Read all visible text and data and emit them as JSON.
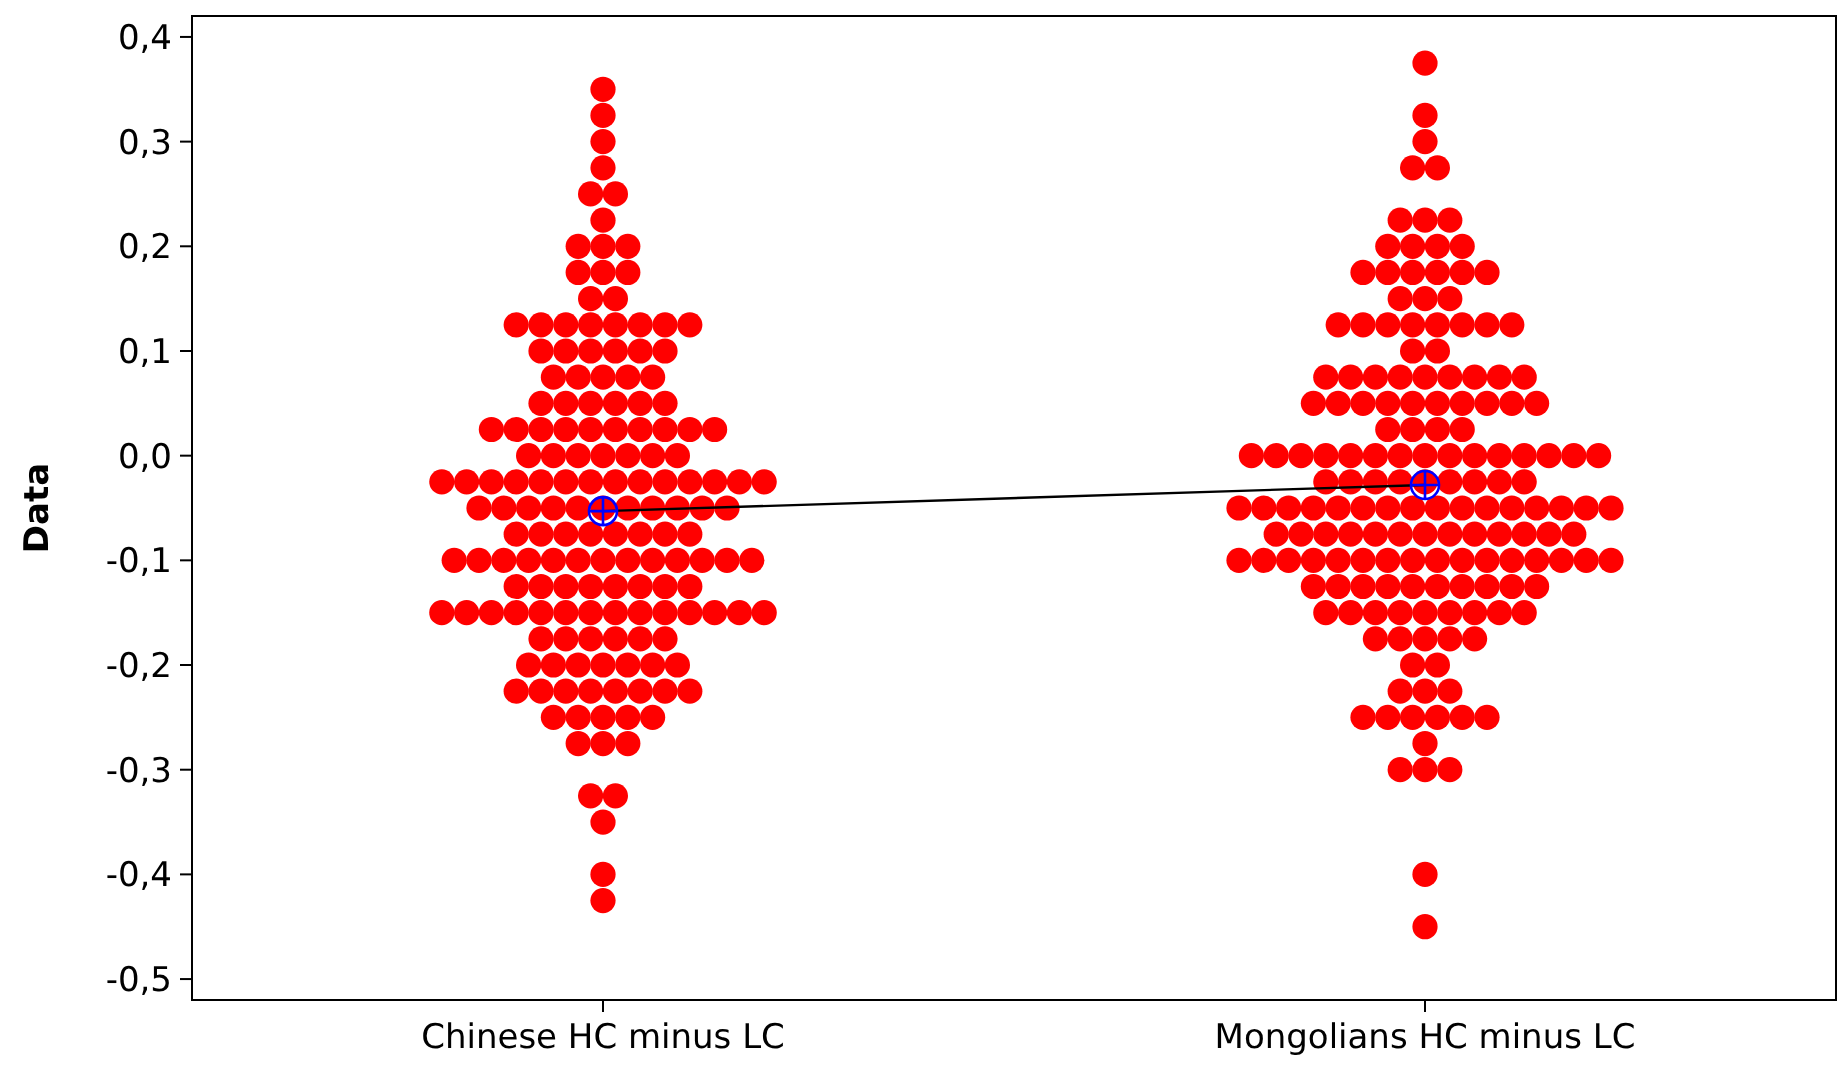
{
  "chart_data": {
    "type": "scatter",
    "ylabel": "Data",
    "categories": [
      "Chinese HC minus LC",
      "Mongolians HC minus LC"
    ],
    "ylim": [
      -0.52,
      0.42
    ],
    "yticks": [
      {
        "value": -0.5,
        "label": "-0,5"
      },
      {
        "value": -0.4,
        "label": "-0,4"
      },
      {
        "value": -0.3,
        "label": "-0,3"
      },
      {
        "value": -0.2,
        "label": "-0,2"
      },
      {
        "value": -0.1,
        "label": "-0,1"
      },
      {
        "value": 0,
        "label": "0,0"
      },
      {
        "value": 0.1,
        "label": "0,1"
      },
      {
        "value": 0.2,
        "label": "0,2"
      },
      {
        "value": 0.3,
        "label": "0,3"
      },
      {
        "value": 0.4,
        "label": "0,4"
      }
    ],
    "grid": false,
    "series": [
      {
        "marker": "circle",
        "color": "#ff0000",
        "x": [
          "Chinese HC minus LC",
          "Chinese HC minus LC",
          "Chinese HC minus LC",
          "Chinese HC minus LC",
          "Chinese HC minus LC",
          "Chinese HC minus LC",
          "Chinese HC minus LC",
          "Chinese HC minus LC",
          "Chinese HC minus LC",
          "Chinese HC minus LC",
          "Chinese HC minus LC",
          "Chinese HC minus LC",
          "Chinese HC minus LC",
          "Chinese HC minus LC",
          "Chinese HC minus LC",
          "Chinese HC minus LC",
          "Chinese HC minus LC",
          "Chinese HC minus LC",
          "Chinese HC minus LC",
          "Chinese HC minus LC",
          "Chinese HC minus LC",
          "Chinese HC minus LC",
          "Chinese HC minus LC",
          "Chinese HC minus LC",
          "Chinese HC minus LC",
          "Chinese HC minus LC",
          "Chinese HC minus LC",
          "Chinese HC minus LC",
          "Chinese HC minus LC",
          "Chinese HC minus LC",
          "Chinese HC minus LC",
          "Chinese HC minus LC",
          "Chinese HC minus LC",
          "Chinese HC minus LC",
          "Chinese HC minus LC",
          "Chinese HC minus LC",
          "Chinese HC minus LC",
          "Chinese HC minus LC",
          "Chinese HC minus LC",
          "Chinese HC minus LC",
          "Chinese HC minus LC",
          "Chinese HC minus LC",
          "Chinese HC minus LC",
          "Chinese HC minus LC",
          "Chinese HC minus LC",
          "Chinese HC minus LC",
          "Chinese HC minus LC",
          "Chinese HC minus LC",
          "Chinese HC minus LC",
          "Chinese HC minus LC",
          "Chinese HC minus LC",
          "Chinese HC minus LC",
          "Chinese HC minus LC",
          "Chinese HC minus LC",
          "Chinese HC minus LC",
          "Chinese HC minus LC",
          "Chinese HC minus LC",
          "Chinese HC minus LC",
          "Chinese HC minus LC",
          "Chinese HC minus LC",
          "Chinese HC minus LC",
          "Chinese HC minus LC",
          "Chinese HC minus LC",
          "Chinese HC minus LC",
          "Chinese HC minus LC",
          "Chinese HC minus LC",
          "Chinese HC minus LC",
          "Chinese HC minus LC",
          "Chinese HC minus LC",
          "Chinese HC minus LC",
          "Chinese HC minus LC",
          "Chinese HC minus LC",
          "Chinese HC minus LC",
          "Chinese HC minus LC",
          "Chinese HC minus LC",
          "Chinese HC minus LC",
          "Chinese HC minus LC",
          "Chinese HC minus LC",
          "Chinese HC minus LC",
          "Chinese HC minus LC",
          "Chinese HC minus LC",
          "Chinese HC minus LC",
          "Chinese HC minus LC",
          "Chinese HC minus LC",
          "Chinese HC minus LC",
          "Chinese HC minus LC",
          "Chinese HC minus LC",
          "Chinese HC minus LC",
          "Chinese HC minus LC",
          "Chinese HC minus LC",
          "Chinese HC minus LC",
          "Chinese HC minus LC",
          "Chinese HC minus LC",
          "Chinese HC minus LC",
          "Chinese HC minus LC",
          "Chinese HC minus LC",
          "Chinese HC minus LC",
          "Chinese HC minus LC",
          "Chinese HC minus LC",
          "Chinese HC minus LC",
          "Chinese HC minus LC",
          "Chinese HC minus LC",
          "Chinese HC minus LC",
          "Chinese HC minus LC",
          "Chinese HC minus LC",
          "Chinese HC minus LC",
          "Chinese HC minus LC",
          "Chinese HC minus LC",
          "Chinese HC minus LC",
          "Chinese HC minus LC",
          "Chinese HC minus LC",
          "Chinese HC minus LC",
          "Chinese HC minus LC",
          "Chinese HC minus LC",
          "Chinese HC minus LC",
          "Chinese HC minus LC",
          "Chinese HC minus LC",
          "Chinese HC minus LC",
          "Chinese HC minus LC",
          "Chinese HC minus LC",
          "Chinese HC minus LC",
          "Chinese HC minus LC",
          "Chinese HC minus LC",
          "Chinese HC minus LC",
          "Chinese HC minus LC",
          "Chinese HC minus LC",
          "Chinese HC minus LC",
          "Chinese HC minus LC",
          "Chinese HC minus LC",
          "Chinese HC minus LC",
          "Chinese HC minus LC",
          "Chinese HC minus LC",
          "Chinese HC minus LC",
          "Chinese HC minus LC",
          "Chinese HC minus LC",
          "Chinese HC minus LC",
          "Chinese HC minus LC",
          "Chinese HC minus LC",
          "Chinese HC minus LC",
          "Chinese HC minus LC",
          "Chinese HC minus LC",
          "Chinese HC minus LC",
          "Chinese HC minus LC",
          "Chinese HC minus LC",
          "Chinese HC minus LC",
          "Chinese HC minus LC",
          "Chinese HC minus LC",
          "Chinese HC minus LC",
          "Chinese HC minus LC",
          "Chinese HC minus LC",
          "Chinese HC minus LC",
          "Chinese HC minus LC",
          "Chinese HC minus LC",
          "Chinese HC minus LC",
          "Chinese HC minus LC",
          "Chinese HC minus LC",
          "Chinese HC minus LC",
          "Chinese HC minus LC",
          "Chinese HC minus LC"
        ],
        "values": [
          0.35,
          0.325,
          0.3,
          0.275,
          0.25,
          0.25,
          0.225,
          0.2,
          0.2,
          0.2,
          0.175,
          0.175,
          0.175,
          0.15,
          0.15,
          0.125,
          0.125,
          0.125,
          0.125,
          0.125,
          0.125,
          0.125,
          0.125,
          0.1,
          0.1,
          0.1,
          0.1,
          0.1,
          0.1,
          0.075,
          0.075,
          0.075,
          0.075,
          0.075,
          0.05,
          0.05,
          0.05,
          0.05,
          0.05,
          0.05,
          0.025,
          0.025,
          0.025,
          0.025,
          0.025,
          0.025,
          0.025,
          0.025,
          0.025,
          0.025,
          0,
          0,
          0,
          0,
          0,
          0,
          0,
          -0.025,
          -0.025,
          -0.025,
          -0.025,
          -0.025,
          -0.025,
          -0.025,
          -0.025,
          -0.025,
          -0.025,
          -0.025,
          -0.025,
          -0.025,
          -0.025,
          -0.05,
          -0.05,
          -0.05,
          -0.05,
          -0.05,
          -0.05,
          -0.05,
          -0.05,
          -0.05,
          -0.05,
          -0.05,
          -0.075,
          -0.075,
          -0.075,
          -0.075,
          -0.075,
          -0.075,
          -0.075,
          -0.075,
          -0.1,
          -0.1,
          -0.1,
          -0.1,
          -0.1,
          -0.1,
          -0.1,
          -0.1,
          -0.1,
          -0.1,
          -0.1,
          -0.1,
          -0.1,
          -0.125,
          -0.125,
          -0.125,
          -0.125,
          -0.125,
          -0.125,
          -0.125,
          -0.125,
          -0.15,
          -0.15,
          -0.15,
          -0.15,
          -0.15,
          -0.15,
          -0.15,
          -0.15,
          -0.15,
          -0.15,
          -0.15,
          -0.15,
          -0.15,
          -0.15,
          -0.175,
          -0.175,
          -0.175,
          -0.175,
          -0.175,
          -0.175,
          -0.2,
          -0.2,
          -0.2,
          -0.2,
          -0.2,
          -0.2,
          -0.2,
          -0.225,
          -0.225,
          -0.225,
          -0.225,
          -0.225,
          -0.225,
          -0.225,
          -0.225,
          -0.25,
          -0.25,
          -0.25,
          -0.25,
          -0.25,
          -0.275,
          -0.275,
          -0.275,
          -0.325,
          -0.325,
          -0.35,
          -0.4,
          -0.425
        ]
      },
      {
        "marker": "circle",
        "color": "#ff0000",
        "x": [
          "Mongolians HC minus LC",
          "Mongolians HC minus LC",
          "Mongolians HC minus LC",
          "Mongolians HC minus LC",
          "Mongolians HC minus LC",
          "Mongolians HC minus LC",
          "Mongolians HC minus LC",
          "Mongolians HC minus LC",
          "Mongolians HC minus LC",
          "Mongolians HC minus LC",
          "Mongolians HC minus LC",
          "Mongolians HC minus LC",
          "Mongolians HC minus LC",
          "Mongolians HC minus LC",
          "Mongolians HC minus LC",
          "Mongolians HC minus LC",
          "Mongolians HC minus LC",
          "Mongolians HC minus LC",
          "Mongolians HC minus LC",
          "Mongolians HC minus LC",
          "Mongolians HC minus LC",
          "Mongolians HC minus LC",
          "Mongolians HC minus LC",
          "Mongolians HC minus LC",
          "Mongolians HC minus LC",
          "Mongolians HC minus LC",
          "Mongolians HC minus LC",
          "Mongolians HC minus LC",
          "Mongolians HC minus LC",
          "Mongolians HC minus LC",
          "Mongolians HC minus LC",
          "Mongolians HC minus LC",
          "Mongolians HC minus LC",
          "Mongolians HC minus LC",
          "Mongolians HC minus LC",
          "Mongolians HC minus LC",
          "Mongolians HC minus LC",
          "Mongolians HC minus LC",
          "Mongolians HC minus LC",
          "Mongolians HC minus LC",
          "Mongolians HC minus LC",
          "Mongolians HC minus LC",
          "Mongolians HC minus LC",
          "Mongolians HC minus LC",
          "Mongolians HC minus LC",
          "Mongolians HC minus LC",
          "Mongolians HC minus LC",
          "Mongolians HC minus LC",
          "Mongolians HC minus LC",
          "Mongolians HC minus LC",
          "Mongolians HC minus LC",
          "Mongolians HC minus LC",
          "Mongolians HC minus LC",
          "Mongolians HC minus LC",
          "Mongolians HC minus LC",
          "Mongolians HC minus LC",
          "Mongolians HC minus LC",
          "Mongolians HC minus LC",
          "Mongolians HC minus LC",
          "Mongolians HC minus LC",
          "Mongolians HC minus LC",
          "Mongolians HC minus LC",
          "Mongolians HC minus LC",
          "Mongolians HC minus LC",
          "Mongolians HC minus LC",
          "Mongolians HC minus LC",
          "Mongolians HC minus LC",
          "Mongolians HC minus LC",
          "Mongolians HC minus LC",
          "Mongolians HC minus LC",
          "Mongolians HC minus LC",
          "Mongolians HC minus LC",
          "Mongolians HC minus LC",
          "Mongolians HC minus LC",
          "Mongolians HC minus LC",
          "Mongolians HC minus LC",
          "Mongolians HC minus LC",
          "Mongolians HC minus LC",
          "Mongolians HC minus LC",
          "Mongolians HC minus LC",
          "Mongolians HC minus LC",
          "Mongolians HC minus LC",
          "Mongolians HC minus LC",
          "Mongolians HC minus LC",
          "Mongolians HC minus LC",
          "Mongolians HC minus LC",
          "Mongolians HC minus LC",
          "Mongolians HC minus LC",
          "Mongolians HC minus LC",
          "Mongolians HC minus LC",
          "Mongolians HC minus LC",
          "Mongolians HC minus LC",
          "Mongolians HC minus LC",
          "Mongolians HC minus LC",
          "Mongolians HC minus LC",
          "Mongolians HC minus LC",
          "Mongolians HC minus LC",
          "Mongolians HC minus LC",
          "Mongolians HC minus LC",
          "Mongolians HC minus LC",
          "Mongolians HC minus LC",
          "Mongolians HC minus LC",
          "Mongolians HC minus LC",
          "Mongolians HC minus LC",
          "Mongolians HC minus LC",
          "Mongolians HC minus LC",
          "Mongolians HC minus LC",
          "Mongolians HC minus LC",
          "Mongolians HC minus LC",
          "Mongolians HC minus LC",
          "Mongolians HC minus LC",
          "Mongolians HC minus LC",
          "Mongolians HC minus LC",
          "Mongolians HC minus LC",
          "Mongolians HC minus LC",
          "Mongolians HC minus LC",
          "Mongolians HC minus LC",
          "Mongolians HC minus LC",
          "Mongolians HC minus LC",
          "Mongolians HC minus LC",
          "Mongolians HC minus LC",
          "Mongolians HC minus LC",
          "Mongolians HC minus LC",
          "Mongolians HC minus LC",
          "Mongolians HC minus LC",
          "Mongolians HC minus LC",
          "Mongolians HC minus LC",
          "Mongolians HC minus LC",
          "Mongolians HC minus LC",
          "Mongolians HC minus LC",
          "Mongolians HC minus LC",
          "Mongolians HC minus LC",
          "Mongolians HC minus LC",
          "Mongolians HC minus LC",
          "Mongolians HC minus LC",
          "Mongolians HC minus LC",
          "Mongolians HC minus LC",
          "Mongolians HC minus LC",
          "Mongolians HC minus LC",
          "Mongolians HC minus LC",
          "Mongolians HC minus LC",
          "Mongolians HC minus LC",
          "Mongolians HC minus LC",
          "Mongolians HC minus LC",
          "Mongolians HC minus LC",
          "Mongolians HC minus LC",
          "Mongolians HC minus LC",
          "Mongolians HC minus LC",
          "Mongolians HC minus LC",
          "Mongolians HC minus LC",
          "Mongolians HC minus LC",
          "Mongolians HC minus LC",
          "Mongolians HC minus LC",
          "Mongolians HC minus LC",
          "Mongolians HC minus LC",
          "Mongolians HC minus LC",
          "Mongolians HC minus LC",
          "Mongolians HC minus LC",
          "Mongolians HC minus LC",
          "Mongolians HC minus LC",
          "Mongolians HC minus LC",
          "Mongolians HC minus LC",
          "Mongolians HC minus LC",
          "Mongolians HC minus LC"
        ],
        "values": [
          0.375,
          0.325,
          0.3,
          0.275,
          0.275,
          0.225,
          0.225,
          0.225,
          0.2,
          0.2,
          0.2,
          0.2,
          0.175,
          0.175,
          0.175,
          0.175,
          0.175,
          0.175,
          0.15,
          0.15,
          0.15,
          0.125,
          0.125,
          0.125,
          0.125,
          0.125,
          0.125,
          0.125,
          0.125,
          0.1,
          0.1,
          0.075,
          0.075,
          0.075,
          0.075,
          0.075,
          0.075,
          0.075,
          0.075,
          0.075,
          0.05,
          0.05,
          0.05,
          0.05,
          0.05,
          0.05,
          0.05,
          0.05,
          0.05,
          0.05,
          0.025,
          0.025,
          0.025,
          0.025,
          0,
          0,
          0,
          0,
          0,
          0,
          0,
          0,
          0,
          0,
          0,
          0,
          0,
          0,
          0,
          -0.025,
          -0.025,
          -0.025,
          -0.025,
          -0.025,
          -0.025,
          -0.025,
          -0.025,
          -0.025,
          -0.05,
          -0.05,
          -0.05,
          -0.05,
          -0.05,
          -0.05,
          -0.05,
          -0.05,
          -0.05,
          -0.05,
          -0.05,
          -0.05,
          -0.05,
          -0.05,
          -0.05,
          -0.05,
          -0.075,
          -0.075,
          -0.075,
          -0.075,
          -0.075,
          -0.075,
          -0.075,
          -0.075,
          -0.075,
          -0.075,
          -0.075,
          -0.075,
          -0.075,
          -0.1,
          -0.1,
          -0.1,
          -0.1,
          -0.1,
          -0.1,
          -0.1,
          -0.1,
          -0.1,
          -0.1,
          -0.1,
          -0.1,
          -0.1,
          -0.1,
          -0.1,
          -0.1,
          -0.125,
          -0.125,
          -0.125,
          -0.125,
          -0.125,
          -0.125,
          -0.125,
          -0.125,
          -0.125,
          -0.125,
          -0.15,
          -0.15,
          -0.15,
          -0.15,
          -0.15,
          -0.15,
          -0.15,
          -0.15,
          -0.15,
          -0.175,
          -0.175,
          -0.175,
          -0.175,
          -0.175,
          -0.2,
          -0.2,
          -0.225,
          -0.225,
          -0.225,
          -0.25,
          -0.25,
          -0.25,
          -0.25,
          -0.25,
          -0.25,
          -0.275,
          -0.3,
          -0.3,
          -0.3,
          -0.4,
          -0.45
        ]
      },
      {
        "type": "line",
        "marker": "none",
        "color": "#000000",
        "x": [
          "Chinese HC minus LC",
          "Mongolians HC minus LC"
        ],
        "values": [
          -0.053,
          -0.028
        ]
      },
      {
        "type": "scatter",
        "marker": "cross",
        "color": "#0000ff",
        "x": [
          "Chinese HC minus LC",
          "Mongolians HC minus LC"
        ],
        "values": [
          -0.053,
          -0.028
        ]
      }
    ]
  }
}
